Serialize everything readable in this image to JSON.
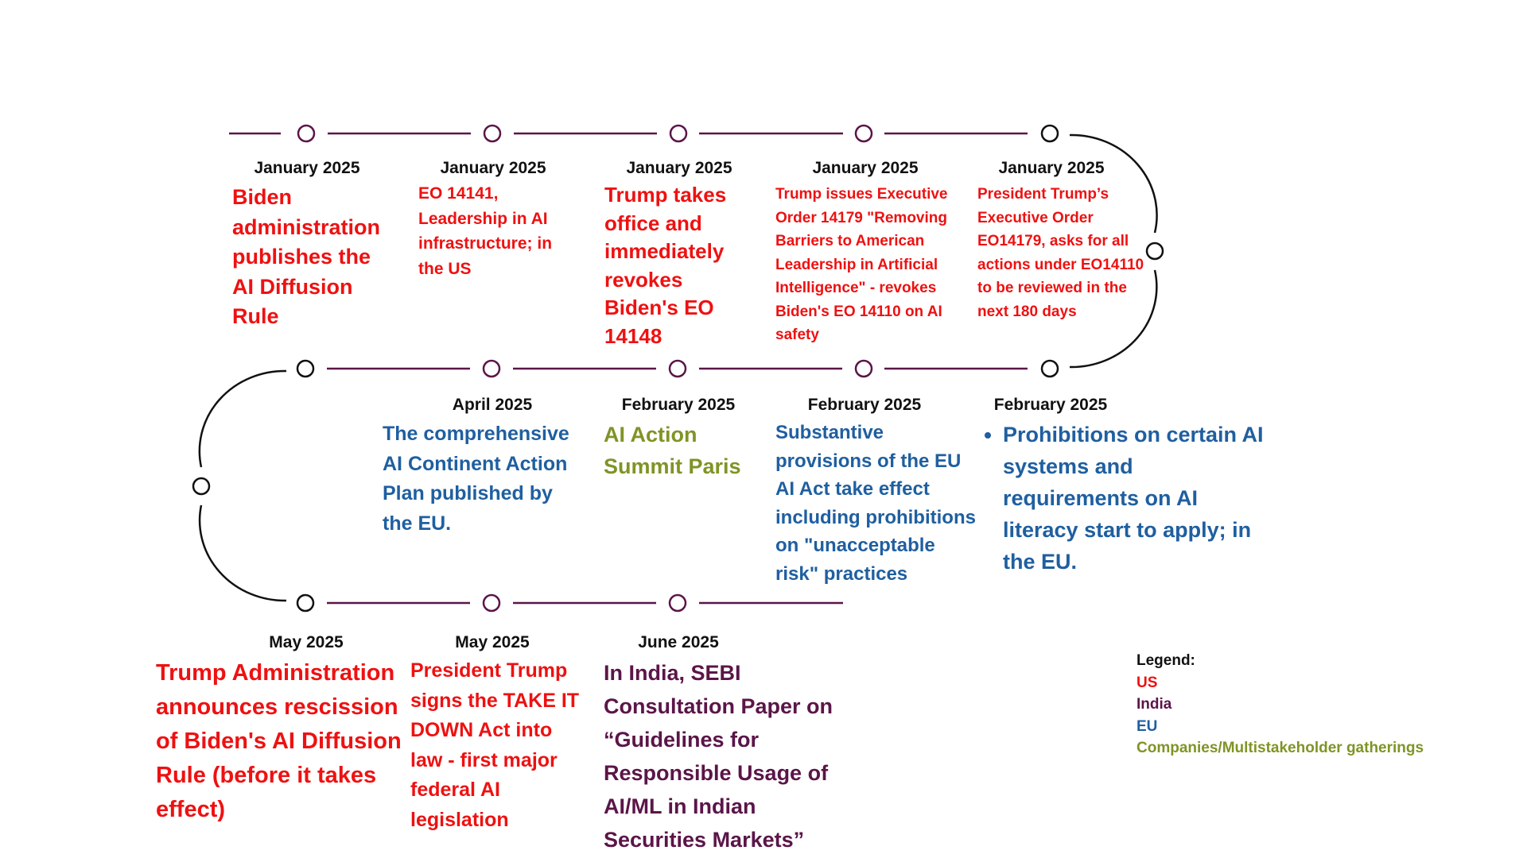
{
  "events": {
    "e1": {
      "date": "January 2025",
      "text": "Biden administration publishes the AI Diffusion Rule",
      "category": "US"
    },
    "e2": {
      "date": "January 2025",
      "text": "EO 14141, Leadership in AI infrastructure; in the US",
      "category": "US"
    },
    "e3": {
      "date": "January 2025",
      "text": "Trump takes office and immediately revokes Biden's EO 14148",
      "category": "US"
    },
    "e4": {
      "date": "January 2025",
      "text": "Trump issues Executive Order 14179 \"Removing Barriers to American Leadership in Artificial Intelligence\" - revokes Biden's EO 14110 on AI safety",
      "category": "US"
    },
    "e5": {
      "date": "January 2025",
      "text": "President Trump’s Executive Order EO14179, asks for all actions under EO14110 to be reviewed in the next 180 days",
      "category": "US"
    },
    "e6": {
      "date": "February 2025",
      "text": "Prohibitions on certain AI systems and requirements on AI literacy start to apply; in the EU.",
      "category": "EU"
    },
    "e7": {
      "date": "February 2025",
      "text": "Substantive provisions of the EU AI Act take effect including prohibitions on \"unacceptable risk\" practices",
      "category": "EU"
    },
    "e8": {
      "date": "February 2025",
      "text": "AI Action Summit Paris",
      "category": "Companies/Multistakeholder gatherings"
    },
    "e9": {
      "date": "April 2025",
      "text": "The comprehensive AI Continent Action Plan published by the EU.",
      "category": "EU"
    },
    "e10": {
      "date": "May 2025",
      "text": "Trump Administration announces rescission of Biden's AI Diffusion Rule (before it takes effect)",
      "category": "US"
    },
    "e11": {
      "date": "May 2025",
      "text": "President Trump signs the TAKE IT DOWN Act into law - first major federal AI legislation",
      "category": "US"
    },
    "e12": {
      "date": "June 2025",
      "text": "In India, SEBI Consultation Paper on “Guidelines for Responsible Usage of AI/ML in Indian Securities Markets”",
      "category": "India"
    }
  },
  "legend": {
    "title": "Legend:",
    "us": "US",
    "india": "India",
    "eu": "EU",
    "companies": "Companies/Multistakeholder gatherings"
  },
  "colors": {
    "us": "#ee1111",
    "india": "#5b1548",
    "eu": "#1f5fa0",
    "companies": "#7f9426",
    "line": "#5b1548",
    "curve": "#111111"
  }
}
